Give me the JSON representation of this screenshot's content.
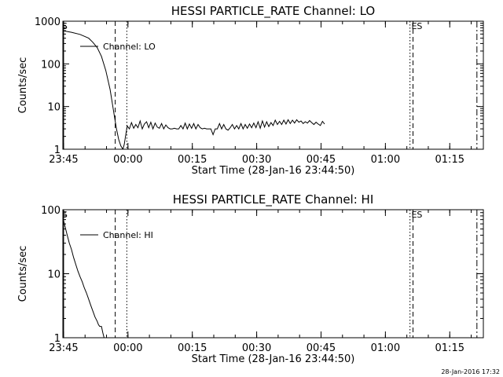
{
  "chart_data": [
    {
      "type": "line",
      "title": "HESSI PARTICLE_RATE Channel: LO",
      "xlabel": "Start Time (28-Jan-16 23:44:50)",
      "ylabel": "Counts/sec",
      "y_scale": "log",
      "ylim": [
        1,
        1000
      ],
      "y_ticks": [
        1,
        10,
        100,
        1000
      ],
      "x_range_min": [
        0,
        98
      ],
      "x_ticks": [
        {
          "label": "23:45",
          "min": 0.17
        },
        {
          "label": "00:00",
          "min": 15.17
        },
        {
          "label": "00:15",
          "min": 30.17
        },
        {
          "label": "00:30",
          "min": 45.17
        },
        {
          "label": "00:45",
          "min": 60.17
        },
        {
          "label": "01:00",
          "min": 75.17
        },
        {
          "label": "01:15",
          "min": 90.17
        }
      ],
      "markers": [
        {
          "label": "S",
          "min": 0.17,
          "style": "solid"
        },
        {
          "label": "",
          "min": 12.2,
          "style": "dashed"
        },
        {
          "label": "",
          "min": 14.9,
          "style": "dotted"
        },
        {
          "label": "",
          "min": 80.9,
          "style": "dotted"
        },
        {
          "label": "ES",
          "min": 81.6,
          "style": "dashed"
        },
        {
          "label": "",
          "min": 96.5,
          "style": "dashdot"
        }
      ],
      "legend": "Channel: LO",
      "legend_position": "top-left",
      "series": [
        {
          "name": "Channel: LO",
          "x": [
            0,
            2,
            4,
            6,
            7,
            8,
            9,
            10,
            11,
            12,
            12.5,
            13,
            13.5,
            14,
            14.3,
            14.6,
            15,
            15.5,
            16,
            16.5,
            17,
            17.5,
            18,
            18.5,
            19,
            19.5,
            20,
            20.5,
            21,
            21.5,
            22,
            22.5,
            23,
            23.5,
            24,
            24.5,
            25,
            25.5,
            26,
            26.5,
            27,
            27.5,
            28,
            28.5,
            29,
            29.5,
            30,
            30.5,
            31,
            31.5,
            32,
            32.5,
            33,
            33.5,
            34,
            34.5,
            35,
            35.5,
            36,
            36.5,
            37,
            37.5,
            38,
            38.5,
            39,
            39.5,
            40,
            40.5,
            41,
            41.5,
            42,
            42.5,
            43,
            43.5,
            44,
            44.5,
            45,
            45.5,
            46,
            46.5,
            47,
            47.5,
            48,
            48.5,
            49,
            49.5,
            50,
            50.5,
            51,
            51.5,
            52,
            52.5,
            53,
            53.5,
            54,
            54.5,
            55,
            55.5,
            56,
            56.5,
            57,
            57.5,
            58,
            58.5,
            59,
            59.5,
            60,
            60.5,
            61
          ],
          "y": [
            600,
            550,
            490,
            400,
            320,
            240,
            150,
            70,
            25,
            6,
            3,
            1.7,
            1.2,
            1.0,
            1.3,
            2.0,
            3.5,
            3.0,
            4.2,
            3.1,
            3.8,
            3.2,
            4.6,
            3.0,
            3.9,
            4.4,
            3.2,
            4.3,
            3.0,
            4.1,
            3.3,
            3.1,
            4.0,
            3.0,
            3.7,
            3.2,
            3.0,
            3.0,
            3.1,
            3.0,
            3.0,
            3.6,
            3.0,
            4.1,
            3.0,
            3.9,
            3.1,
            4.0,
            3.0,
            3.8,
            3.2,
            3.0,
            3.1,
            3.0,
            3.0,
            3.0,
            2.2,
            3.0,
            3.0,
            4.0,
            3.0,
            3.8,
            3.0,
            2.8,
            3.2,
            3.8,
            3.0,
            3.6,
            3.0,
            4.0,
            3.0,
            3.8,
            3.1,
            3.9,
            3.2,
            4.1,
            3.2,
            4.4,
            3.1,
            4.6,
            3.3,
            4.4,
            3.4,
            4.2,
            3.6,
            4.8,
            3.8,
            4.5,
            3.8,
            4.8,
            3.9,
            4.9,
            4.0,
            4.8,
            4.1,
            4.9,
            4.3,
            4.6,
            4.0,
            4.4,
            4.1,
            4.7,
            4.2,
            3.8,
            4.3,
            3.9,
            3.6,
            4.5,
            3.9
          ]
        }
      ]
    },
    {
      "type": "line",
      "title": "HESSI PARTICLE_RATE Channel: HI",
      "xlabel": "Start Time (28-Jan-16 23:44:50)",
      "ylabel": "Counts/sec",
      "y_scale": "log",
      "ylim": [
        1,
        100
      ],
      "y_ticks": [
        1,
        10,
        100
      ],
      "x_range_min": [
        0,
        98
      ],
      "x_ticks": [
        {
          "label": "23:45",
          "min": 0.17
        },
        {
          "label": "00:00",
          "min": 15.17
        },
        {
          "label": "00:15",
          "min": 30.17
        },
        {
          "label": "00:30",
          "min": 45.17
        },
        {
          "label": "00:45",
          "min": 60.17
        },
        {
          "label": "01:00",
          "min": 75.17
        },
        {
          "label": "01:15",
          "min": 90.17
        }
      ],
      "markers": [
        {
          "label": "S",
          "min": 0.17,
          "style": "solid"
        },
        {
          "label": "",
          "min": 12.2,
          "style": "dashed"
        },
        {
          "label": "",
          "min": 14.9,
          "style": "dotted"
        },
        {
          "label": "",
          "min": 80.9,
          "style": "dotted"
        },
        {
          "label": "ES",
          "min": 81.6,
          "style": "dashed"
        },
        {
          "label": "",
          "min": 96.5,
          "style": "dashdot"
        }
      ],
      "legend": "Channel: HI",
      "legend_position": "top-left",
      "series": [
        {
          "name": "Channel: HI",
          "x": [
            0,
            0.5,
            1,
            1.5,
            2,
            2.5,
            3,
            3.5,
            4,
            4.5,
            5,
            5.5,
            6,
            6.5,
            7,
            7.5,
            8,
            8.3,
            8.6,
            9,
            9.3,
            9.6,
            10
          ],
          "y": [
            75,
            55,
            40,
            30,
            24,
            18,
            14,
            11,
            9,
            7.5,
            6,
            5,
            4,
            3.2,
            2.6,
            2.1,
            1.8,
            1.6,
            1.5,
            1.5,
            1.2,
            1.0,
            0.9
          ]
        }
      ]
    }
  ],
  "timestamp": "28-Jan-2016 17:32"
}
